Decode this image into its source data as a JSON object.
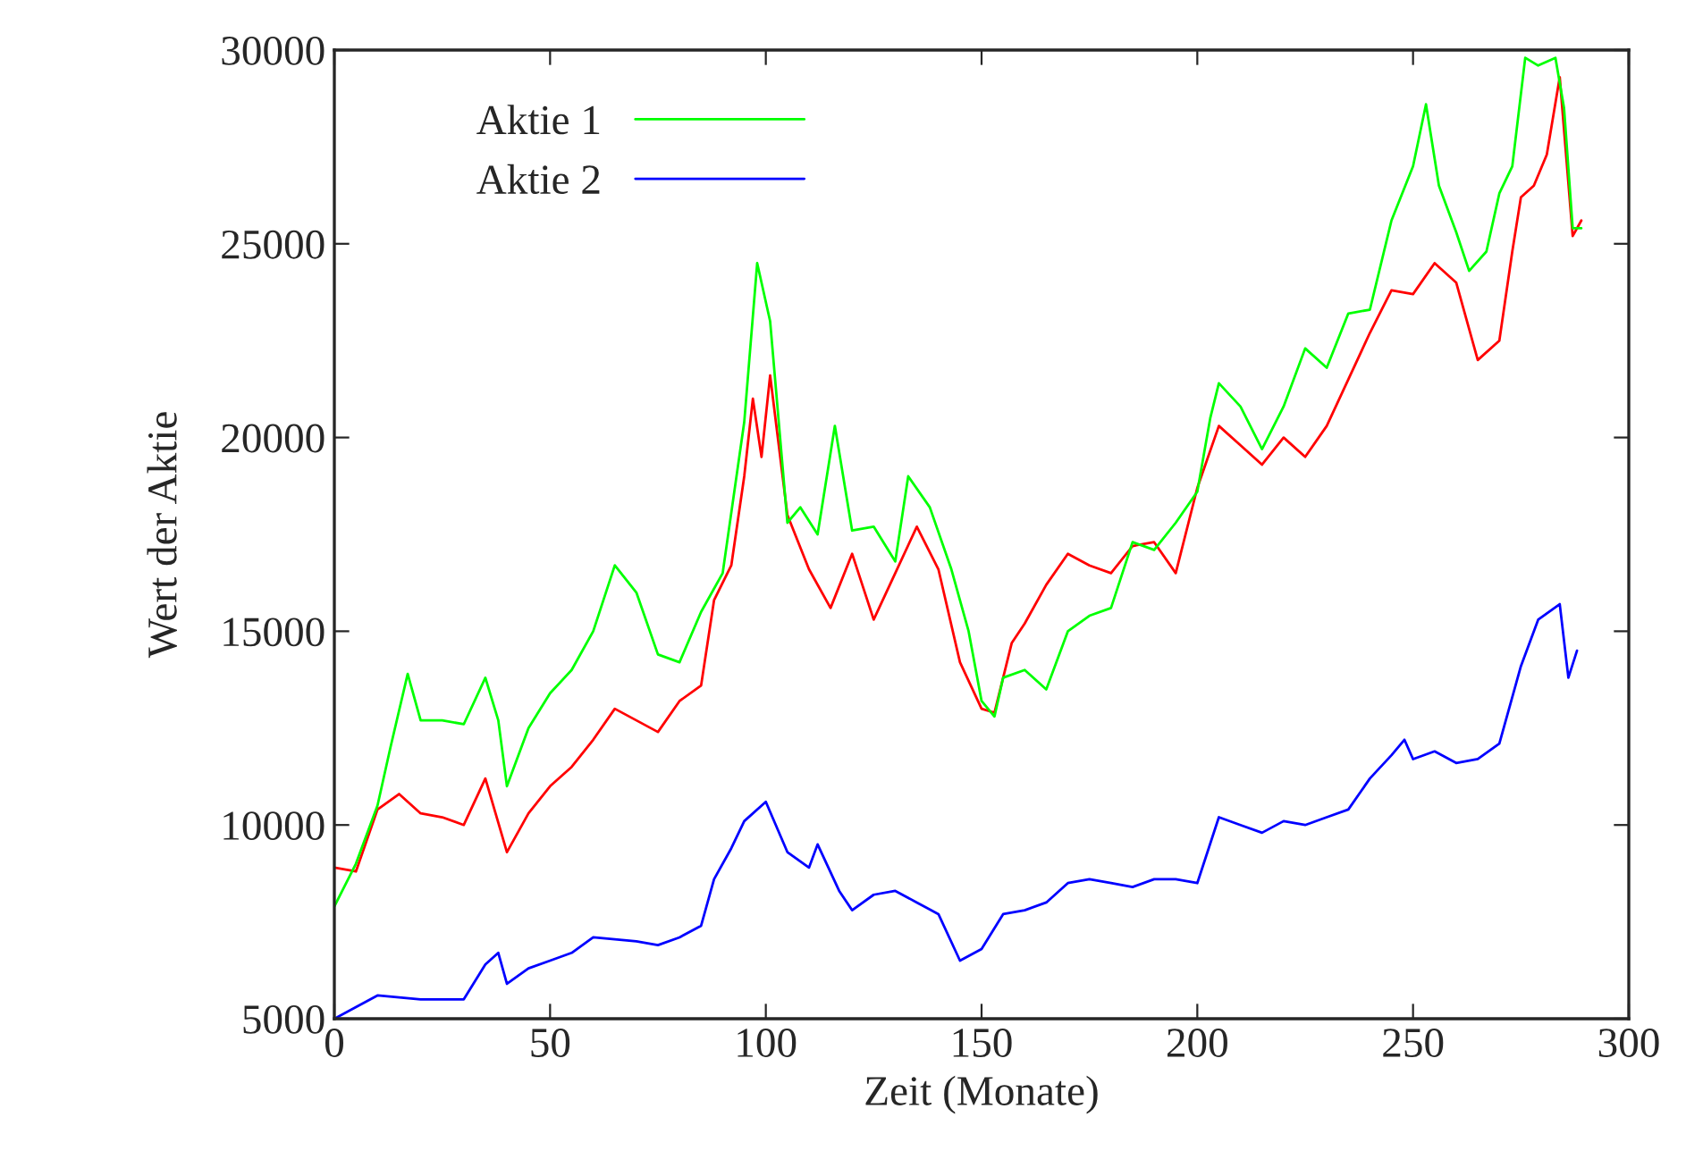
{
  "chart_data": {
    "type": "line",
    "xlabel": "Zeit (Monate)",
    "ylabel": "Wert der Aktie",
    "xlim": [
      0,
      300
    ],
    "xticks": [
      0,
      50,
      100,
      150,
      200,
      250,
      300
    ],
    "ylim": [
      5000,
      30000
    ],
    "yticks": [
      5000,
      10000,
      15000,
      20000,
      25000,
      30000
    ],
    "grid": false,
    "legend": "top left",
    "marker": "none",
    "line_style": "solid",
    "series": [
      {
        "color": "#ff0000",
        "x": [
          0,
          5,
          10,
          15,
          20,
          25,
          30,
          35,
          40,
          45,
          50,
          55,
          60,
          65,
          70,
          75,
          80,
          85,
          88,
          92,
          95,
          97,
          99,
          101,
          105,
          110,
          115,
          120,
          125,
          130,
          135,
          140,
          145,
          150,
          153,
          157,
          160,
          165,
          170,
          175,
          180,
          185,
          190,
          195,
          200,
          205,
          210,
          215,
          220,
          225,
          230,
          235,
          240,
          245,
          250,
          255,
          260,
          265,
          270,
          273,
          275,
          278,
          281,
          284,
          287,
          289
        ],
        "values": [
          8900,
          8800,
          10400,
          10800,
          10300,
          10200,
          10000,
          11200,
          9300,
          10300,
          11000,
          11500,
          12200,
          13000,
          12700,
          12400,
          13200,
          13600,
          15800,
          16700,
          19000,
          21000,
          19500,
          21600,
          18000,
          16600,
          15600,
          17000,
          15300,
          16500,
          17700,
          16600,
          14200,
          13000,
          12900,
          14700,
          15200,
          16200,
          17000,
          16700,
          16500,
          17200,
          17300,
          16500,
          18700,
          20300,
          19800,
          19300,
          20000,
          19500,
          20300,
          21500,
          22700,
          23800,
          23700,
          24500,
          24000,
          22000,
          22500,
          24800,
          26200,
          26500,
          27300,
          29300,
          25200,
          25600
        ]
      },
      {
        "name": "Aktie 1",
        "color": "#00ff00",
        "x": [
          0,
          5,
          10,
          13,
          17,
          20,
          25,
          30,
          35,
          38,
          40,
          45,
          50,
          55,
          60,
          65,
          70,
          75,
          80,
          85,
          90,
          95,
          98,
          101,
          105,
          108,
          112,
          116,
          120,
          125,
          130,
          133,
          138,
          143,
          147,
          150,
          153,
          155,
          160,
          165,
          170,
          175,
          180,
          185,
          190,
          195,
          200,
          203,
          205,
          210,
          215,
          220,
          225,
          230,
          235,
          240,
          245,
          250,
          253,
          256,
          260,
          263,
          267,
          270,
          273,
          276,
          279,
          283,
          285,
          287,
          289
        ],
        "values": [
          7900,
          9000,
          10500,
          12000,
          13900,
          12700,
          12700,
          12600,
          13800,
          12700,
          11000,
          12500,
          13400,
          14000,
          15000,
          16700,
          16000,
          14400,
          14200,
          15500,
          16500,
          20400,
          24500,
          23000,
          17800,
          18200,
          17500,
          20300,
          17600,
          17700,
          16800,
          19000,
          18200,
          16600,
          15000,
          13200,
          12800,
          13800,
          14000,
          13500,
          15000,
          15400,
          15600,
          17300,
          17100,
          17800,
          18600,
          20500,
          21400,
          20800,
          19700,
          20800,
          22300,
          21800,
          23200,
          23300,
          25600,
          27000,
          28600,
          26500,
          25300,
          24300,
          24800,
          26300,
          27000,
          29800,
          29600,
          29800,
          28500,
          25400,
          25400
        ]
      },
      {
        "name": "Aktie 2",
        "color": "#0000ff",
        "x": [
          0,
          5,
          10,
          20,
          30,
          35,
          38,
          40,
          45,
          50,
          55,
          60,
          70,
          75,
          80,
          85,
          88,
          92,
          95,
          100,
          105,
          110,
          112,
          117,
          120,
          125,
          130,
          135,
          140,
          145,
          150,
          155,
          160,
          165,
          170,
          175,
          180,
          185,
          190,
          195,
          200,
          205,
          210,
          215,
          220,
          225,
          230,
          235,
          240,
          245,
          248,
          250,
          255,
          260,
          265,
          270,
          275,
          279,
          284,
          286,
          288
        ],
        "values": [
          5000,
          5300,
          5600,
          5500,
          5500,
          6400,
          6700,
          5900,
          6300,
          6500,
          6700,
          7100,
          7000,
          6900,
          7100,
          7400,
          8600,
          9400,
          10100,
          10600,
          9300,
          8900,
          9500,
          8300,
          7800,
          8200,
          8300,
          8000,
          7700,
          6500,
          6800,
          7700,
          7800,
          8000,
          8500,
          8600,
          8500,
          8400,
          8600,
          8600,
          8500,
          10200,
          10000,
          9800,
          10100,
          10000,
          10200,
          10400,
          11200,
          11800,
          12200,
          11700,
          11900,
          11600,
          11700,
          12100,
          14100,
          15300,
          15700,
          13800,
          14500
        ]
      }
    ]
  }
}
